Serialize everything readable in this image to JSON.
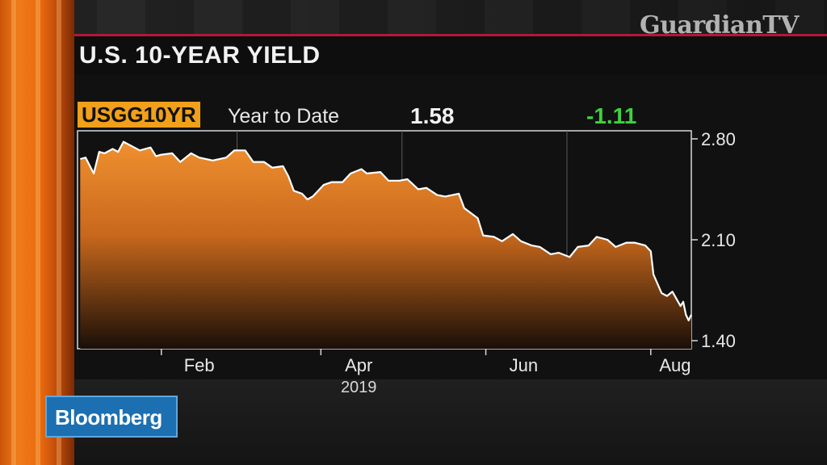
{
  "broadcast": {
    "watermark": "GuardianTV",
    "network_logo": "Bloomberg"
  },
  "graphic": {
    "title": "U.S. 10-YEAR YIELD",
    "ticker": "USGG10YR",
    "period": "Year to Date",
    "last_value": "1.58",
    "net_change": "-1.11",
    "colors": {
      "ticker_bg": "#f0a01a",
      "change": "#3ed23e",
      "area_top": "#f09030",
      "line": "#ffffff",
      "accent_rule": "#b0183a"
    }
  },
  "chart_data": {
    "type": "area",
    "x_ticks": [
      "Feb",
      "Apr",
      "Jun",
      "Aug"
    ],
    "x_subtitle": "2019",
    "y_ticks": [
      "2.80",
      "2.10",
      "1.40"
    ],
    "ylim": [
      1.4,
      2.8
    ],
    "grid": true,
    "series": [
      {
        "x": [
          "2019-01-02",
          "2019-01-04",
          "2019-01-07",
          "2019-01-09",
          "2019-01-11",
          "2019-01-14",
          "2019-01-16",
          "2019-01-18",
          "2019-01-22",
          "2019-01-24",
          "2019-01-28",
          "2019-01-30",
          "2019-02-01",
          "2019-02-05",
          "2019-02-08",
          "2019-02-12",
          "2019-02-15",
          "2019-02-20",
          "2019-02-25",
          "2019-02-28",
          "2019-03-04",
          "2019-03-07",
          "2019-03-11",
          "2019-03-14",
          "2019-03-18",
          "2019-03-20",
          "2019-03-22",
          "2019-03-25",
          "2019-03-27",
          "2019-03-29",
          "2019-04-02",
          "2019-04-05",
          "2019-04-09",
          "2019-04-12",
          "2019-04-16",
          "2019-04-18",
          "2019-04-23",
          "2019-04-26",
          "2019-04-30",
          "2019-05-03",
          "2019-05-07",
          "2019-05-10",
          "2019-05-14",
          "2019-05-17",
          "2019-05-22",
          "2019-05-24",
          "2019-05-29",
          "2019-05-31",
          "2019-06-04",
          "2019-06-07",
          "2019-06-11",
          "2019-06-14",
          "2019-06-18",
          "2019-06-21",
          "2019-06-25",
          "2019-06-28",
          "2019-07-02",
          "2019-07-05",
          "2019-07-09",
          "2019-07-12",
          "2019-07-16",
          "2019-07-19",
          "2019-07-23",
          "2019-07-26",
          "2019-07-30",
          "2019-08-01",
          "2019-08-02",
          "2019-08-05",
          "2019-08-07",
          "2019-08-09",
          "2019-08-12",
          "2019-08-13",
          "2019-08-14",
          "2019-08-15",
          "2019-08-16"
        ],
        "y": [
          2.66,
          2.67,
          2.56,
          2.71,
          2.7,
          2.73,
          2.71,
          2.78,
          2.74,
          2.72,
          2.74,
          2.68,
          2.69,
          2.7,
          2.64,
          2.7,
          2.67,
          2.65,
          2.67,
          2.72,
          2.72,
          2.64,
          2.64,
          2.6,
          2.61,
          2.54,
          2.44,
          2.42,
          2.38,
          2.4,
          2.48,
          2.5,
          2.5,
          2.56,
          2.59,
          2.56,
          2.57,
          2.51,
          2.51,
          2.52,
          2.45,
          2.46,
          2.41,
          2.4,
          2.42,
          2.32,
          2.25,
          2.13,
          2.12,
          2.09,
          2.14,
          2.09,
          2.06,
          2.05,
          2.0,
          2.01,
          1.98,
          2.05,
          2.06,
          2.12,
          2.1,
          2.05,
          2.08,
          2.08,
          2.06,
          2.02,
          1.86,
          1.73,
          1.71,
          1.74,
          1.64,
          1.67,
          1.58,
          1.54,
          1.58
        ]
      }
    ]
  }
}
